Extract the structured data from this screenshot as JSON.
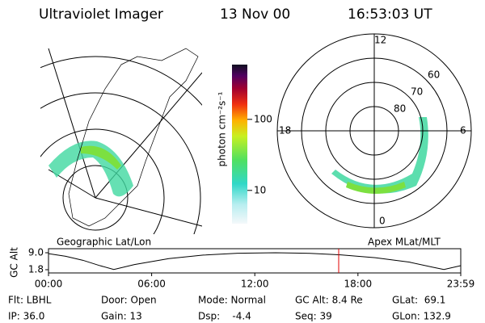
{
  "header": {
    "title": "Ultraviolet Imager",
    "date": "13 Nov 00",
    "time": "16:53:03 UT"
  },
  "left_panel": {
    "label": "Geographic Lat/Lon"
  },
  "colorbar": {
    "label": "photon cm⁻²s⁻¹",
    "scale": "log",
    "lim": [
      3.4,
      590
    ],
    "ticks": [
      10,
      100
    ]
  },
  "right_panel": {
    "label": "Apex MLat/MLT",
    "lat_limit": 50,
    "lat_circles": [
      80,
      70,
      60
    ],
    "mlt_labels": [
      12,
      18,
      6,
      0
    ]
  },
  "altitude_plot": {
    "ylabel": "GC Alt",
    "ylim": [
      1.8,
      9.0
    ],
    "yticks": [
      {
        "value": 9.0,
        "label": "9.0"
      },
      {
        "value": 1.8,
        "label": "1.8"
      }
    ],
    "xlim": [
      0,
      23.98
    ],
    "xticks": [
      {
        "value": 0,
        "label": "00:00"
      },
      {
        "value": 6,
        "label": "06:00"
      },
      {
        "value": 12,
        "label": "12:00"
      },
      {
        "value": 18,
        "label": "18:00"
      },
      {
        "value": 23.98,
        "label": "23:59"
      }
    ],
    "x": [
      0,
      1,
      2,
      3,
      3.8,
      5,
      7,
      9,
      11,
      13.2,
      15,
      17,
      19,
      21,
      22.4,
      23.0,
      23.98
    ],
    "values": [
      8.6,
      7.5,
      5.8,
      3.5,
      1.9,
      4.0,
      6.5,
      8.0,
      8.8,
      9.0,
      8.8,
      8.1,
      6.9,
      5.0,
      2.8,
      1.9,
      3.5
    ],
    "marker": 16.88
  },
  "footer": {
    "rows": [
      [
        "Flt: LBHL",
        "Door: Open",
        "Mode: Normal",
        "GC Alt: 8.4 Re",
        "GLat:  69.1"
      ],
      [
        "IP: 36.0",
        "Gain: 13",
        "Dsp:    -4.4",
        "Seq: 39",
        "GLon: 132.9"
      ]
    ]
  }
}
